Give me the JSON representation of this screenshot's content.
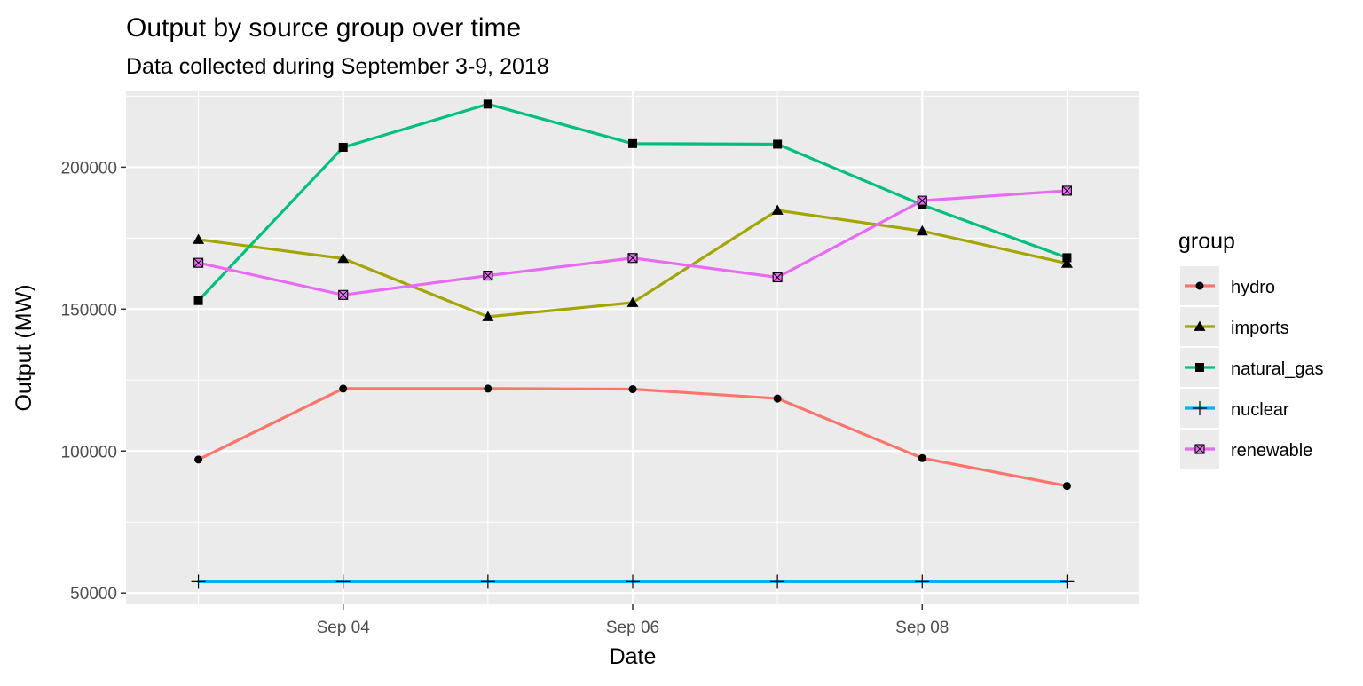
{
  "chart_data": {
    "type": "line",
    "title": "Output by source group over time",
    "subtitle": "Data collected during September 3-9, 2018",
    "xlabel": "Date",
    "ylabel": "Output (MW)",
    "x": [
      "2018-09-03",
      "2018-09-04",
      "2018-09-05",
      "2018-09-06",
      "2018-09-07",
      "2018-09-08",
      "2018-09-09"
    ],
    "x_ticks": [
      "Sep 04",
      "Sep 06",
      "Sep 08"
    ],
    "x_tick_dates": [
      "2018-09-04",
      "2018-09-06",
      "2018-09-08"
    ],
    "xlim": [
      "2018-09-02 12:00",
      "2018-09-09 12:00"
    ],
    "y_ticks": [
      50000,
      100000,
      150000,
      200000
    ],
    "ylim": [
      46000,
      227000
    ],
    "grid": true,
    "panel_background": "#ebebeb",
    "legend": {
      "title": "group",
      "placement": "right"
    },
    "series": [
      {
        "name": "hydro",
        "color": "#f8766d",
        "shape": "circle",
        "values": [
          97000,
          122000,
          122000,
          121800,
          118500,
          97500,
          87700
        ]
      },
      {
        "name": "imports",
        "color": "#a3a500",
        "shape": "triangle",
        "values": [
          174500,
          167800,
          147300,
          152300,
          184800,
          177500,
          166100
        ]
      },
      {
        "name": "natural_gas",
        "color": "#00bf7d",
        "shape": "square",
        "values": [
          153000,
          207000,
          222200,
          208300,
          208100,
          186700,
          168100
        ]
      },
      {
        "name": "nuclear",
        "color": "#00b0f6",
        "shape": "plus",
        "values": [
          54000,
          54000,
          54000,
          54000,
          54000,
          54000,
          54000
        ]
      },
      {
        "name": "renewable",
        "color": "#e76bf3",
        "shape": "boxcross",
        "values": [
          166300,
          155000,
          161800,
          168000,
          161200,
          188200,
          191700
        ]
      }
    ]
  }
}
